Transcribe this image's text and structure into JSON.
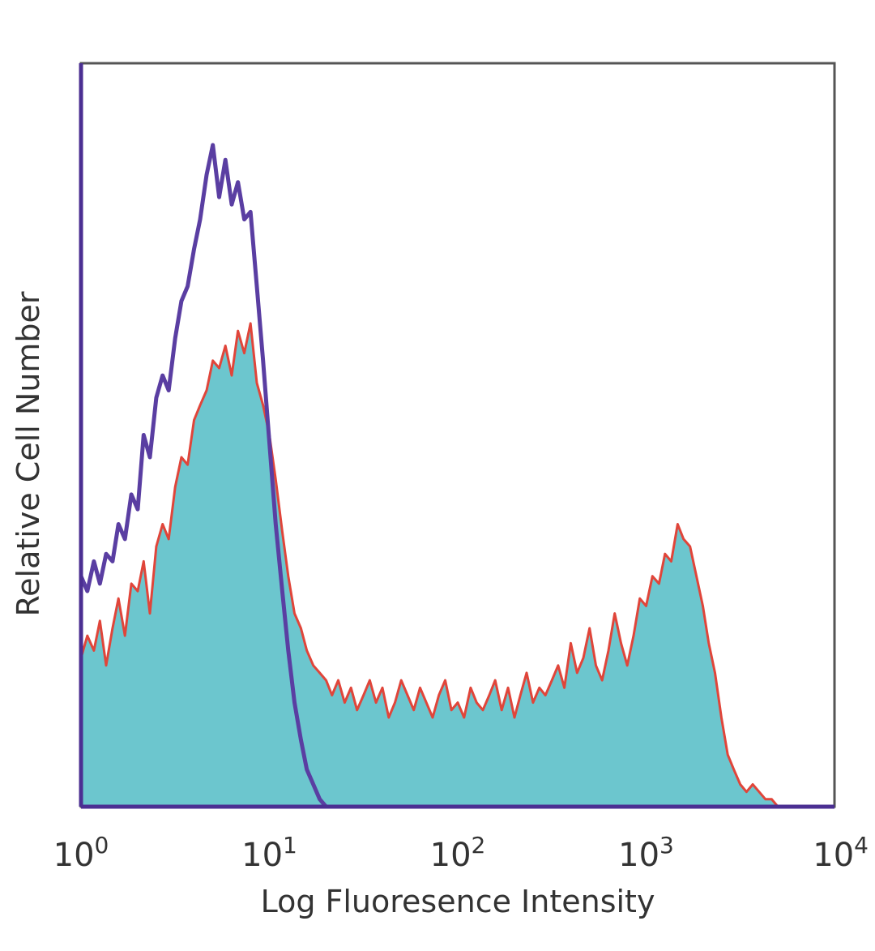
{
  "chart_data": {
    "type": "area",
    "title": "",
    "xlabel": "Log Fluoresence Intensity",
    "ylabel": "Relative Cell Number",
    "x_scale": "log",
    "xlim": [
      1,
      10000
    ],
    "ylim": [
      0,
      100
    ],
    "grid": false,
    "x_ticks": [
      {
        "value": 1,
        "base": "10",
        "exp": "0"
      },
      {
        "value": 10,
        "base": "10",
        "exp": "1"
      },
      {
        "value": 100,
        "base": "10",
        "exp": "2"
      },
      {
        "value": 1000,
        "base": "10",
        "exp": "3"
      },
      {
        "value": 10000,
        "base": "10",
        "exp": "4"
      }
    ],
    "series": [
      {
        "kind": "filled",
        "color": "#6cc6ce",
        "outline_color": "#e0453a",
        "x": [
          1,
          1.08,
          1.17,
          1.26,
          1.36,
          1.47,
          1.58,
          1.71,
          1.85,
          2.0,
          2.15,
          2.32,
          2.51,
          2.71,
          2.92,
          3.16,
          3.41,
          3.68,
          3.98,
          4.29,
          4.64,
          5.01,
          5.41,
          5.84,
          6.31,
          6.81,
          7.36,
          7.94,
          8.58,
          9.26,
          10.0,
          10.8,
          11.7,
          12.6,
          13.6,
          14.7,
          15.8,
          17.1,
          18.5,
          20.0,
          21.5,
          23.2,
          25.1,
          27.1,
          29.2,
          31.6,
          34.1,
          36.8,
          39.8,
          43.0,
          46.4,
          50.1,
          54.1,
          58.4,
          63.1,
          68.1,
          73.6,
          79.4,
          85.8,
          92.6,
          100,
          108,
          117,
          126,
          136,
          147,
          158,
          171,
          185,
          200,
          215,
          232,
          251,
          271,
          292,
          316,
          341,
          368,
          398,
          430,
          464,
          501,
          541,
          584,
          631,
          681,
          736,
          794,
          858,
          926,
          1000,
          1080,
          1170,
          1260,
          1360,
          1470,
          1580,
          1710,
          1850,
          2000,
          2150,
          2320,
          2510,
          2710,
          2920,
          3160,
          3410,
          3680,
          3980,
          4300,
          4640,
          5010
        ],
        "y": [
          20,
          23,
          21,
          25,
          19,
          24,
          28,
          23,
          30,
          29,
          33,
          26,
          35,
          38,
          36,
          43,
          47,
          46,
          52,
          54,
          56,
          60,
          59,
          62,
          58,
          64,
          61,
          65,
          57,
          54,
          50,
          44,
          37,
          31,
          26,
          24,
          21,
          19,
          18,
          17,
          15,
          17,
          14,
          16,
          13,
          15,
          17,
          14,
          16,
          12,
          14,
          17,
          15,
          13,
          16,
          14,
          12,
          15,
          17,
          13,
          14,
          12,
          16,
          14,
          13,
          15,
          17,
          13,
          16,
          12,
          15,
          18,
          14,
          16,
          15,
          17,
          19,
          16,
          22,
          18,
          20,
          24,
          19,
          17,
          21,
          26,
          22,
          19,
          23,
          28,
          27,
          31,
          30,
          34,
          33,
          38,
          36,
          35,
          31,
          27,
          22,
          18,
          12,
          7,
          5,
          3,
          2,
          3,
          2,
          1,
          1,
          0
        ]
      },
      {
        "kind": "outline",
        "color": "#5a3ea2",
        "x": [
          1,
          1.08,
          1.17,
          1.26,
          1.36,
          1.47,
          1.58,
          1.71,
          1.85,
          2.0,
          2.15,
          2.32,
          2.51,
          2.71,
          2.92,
          3.16,
          3.41,
          3.68,
          3.98,
          4.29,
          4.64,
          5.01,
          5.41,
          5.84,
          6.31,
          6.81,
          7.36,
          7.94,
          8.58,
          9.26,
          10.0,
          10.8,
          11.7,
          12.6,
          13.6,
          14.7,
          15.8,
          17.1,
          18.5,
          20.0
        ],
        "y": [
          31,
          29,
          33,
          30,
          34,
          33,
          38,
          36,
          42,
          40,
          50,
          47,
          55,
          58,
          56,
          63,
          68,
          70,
          75,
          79,
          85,
          89,
          82,
          87,
          81,
          84,
          79,
          80,
          70,
          60,
          49,
          38,
          29,
          21,
          14,
          9,
          5,
          3,
          1,
          0
        ]
      }
    ]
  }
}
